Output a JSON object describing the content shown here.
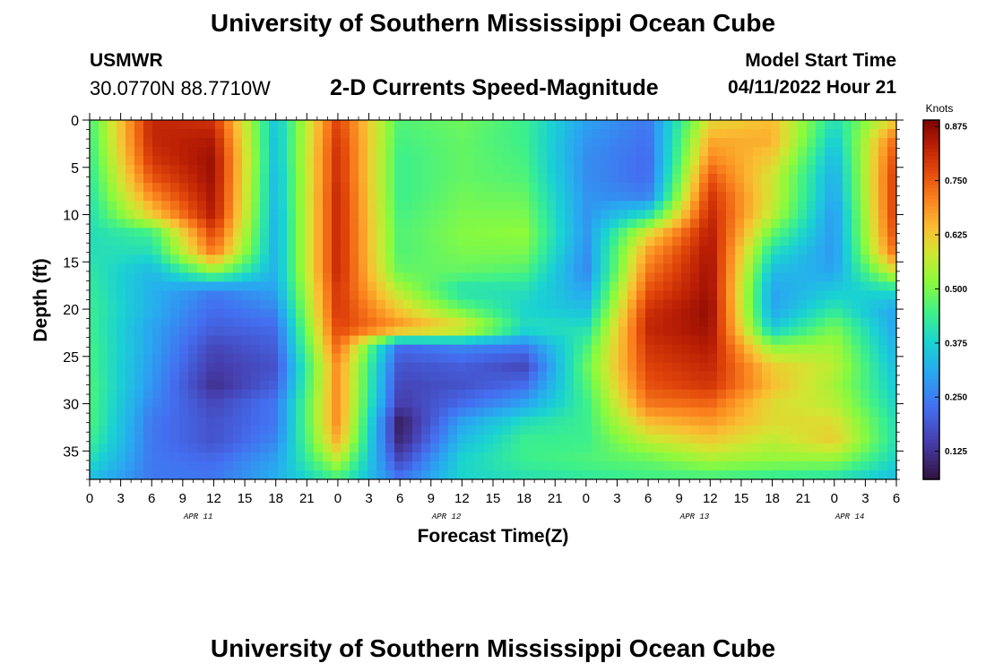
{
  "header": {
    "title": "University of Southern Mississippi Ocean Cube",
    "station_id": "USMWR",
    "station_coords": "30.0770N  88.7710W",
    "subtitle": "2-D Currents Speed-Magnitude",
    "model_start_label": "Model Start Time",
    "model_start_value": "04/11/2022 Hour 21"
  },
  "footer": {
    "title": "University of Southern Mississippi Ocean Cube"
  },
  "chart_data": {
    "type": "heatmap",
    "title": "2-D Currents Speed-Magnitude",
    "xlabel": "Forecast Time(Z)",
    "ylabel": "Depth (ft)",
    "x_tick_labels": [
      "0",
      "3",
      "6",
      "9",
      "12",
      "15",
      "18",
      "21",
      "0",
      "3",
      "6",
      "9",
      "12",
      "15",
      "18",
      "21",
      "0",
      "3",
      "6",
      "9",
      "12",
      "15",
      "18",
      "21",
      "0",
      "3",
      "6"
    ],
    "date_labels": [
      {
        "label": "APR 11",
        "at_tick": 3.5
      },
      {
        "label": "APR 12",
        "at_tick": 11.5
      },
      {
        "label": "APR 13",
        "at_tick": 19.5
      },
      {
        "label": "APR 14",
        "at_tick": 24.5
      }
    ],
    "x_range_hours": [
      0,
      78
    ],
    "y_ticks": [
      0,
      5,
      10,
      15,
      20,
      25,
      30,
      35
    ],
    "ylim": [
      0,
      38
    ],
    "y_inverted": true,
    "colorbar": {
      "unit": "Knots",
      "ticks": [
        "0.125",
        "0.250",
        "0.375",
        "0.500",
        "0.625",
        "0.750",
        "0.875"
      ],
      "range": [
        0.06,
        0.89
      ],
      "colormap": "turbo"
    },
    "depths": [
      0,
      2,
      4,
      6,
      8,
      10,
      12,
      14,
      16,
      18,
      20,
      22,
      24,
      26,
      28,
      30,
      32,
      34,
      36,
      38
    ],
    "hours": [
      0,
      6,
      12,
      18,
      24,
      30,
      36,
      42,
      48,
      54,
      60,
      66,
      72,
      78
    ],
    "values": [
      [
        0.45,
        0.82,
        0.8,
        0.35,
        0.78,
        0.46,
        0.49,
        0.44,
        0.3,
        0.24,
        0.6,
        0.64,
        0.4,
        0.62
      ],
      [
        0.44,
        0.82,
        0.84,
        0.34,
        0.8,
        0.45,
        0.48,
        0.44,
        0.28,
        0.23,
        0.66,
        0.66,
        0.36,
        0.74
      ],
      [
        0.43,
        0.8,
        0.86,
        0.34,
        0.81,
        0.44,
        0.48,
        0.45,
        0.27,
        0.22,
        0.7,
        0.62,
        0.33,
        0.78
      ],
      [
        0.42,
        0.76,
        0.86,
        0.33,
        0.81,
        0.44,
        0.48,
        0.46,
        0.27,
        0.22,
        0.76,
        0.58,
        0.31,
        0.8
      ],
      [
        0.41,
        0.7,
        0.85,
        0.33,
        0.82,
        0.44,
        0.49,
        0.48,
        0.28,
        0.25,
        0.8,
        0.58,
        0.3,
        0.8
      ],
      [
        0.4,
        0.62,
        0.84,
        0.32,
        0.82,
        0.45,
        0.5,
        0.5,
        0.28,
        0.4,
        0.82,
        0.56,
        0.28,
        0.8
      ],
      [
        0.4,
        0.44,
        0.78,
        0.32,
        0.82,
        0.46,
        0.51,
        0.52,
        0.28,
        0.6,
        0.84,
        0.48,
        0.28,
        0.78
      ],
      [
        0.4,
        0.4,
        0.72,
        0.32,
        0.82,
        0.46,
        0.5,
        0.5,
        0.27,
        0.68,
        0.85,
        0.4,
        0.28,
        0.74
      ],
      [
        0.42,
        0.33,
        0.52,
        0.32,
        0.82,
        0.48,
        0.48,
        0.46,
        0.26,
        0.72,
        0.86,
        0.34,
        0.3,
        0.6
      ],
      [
        0.43,
        0.32,
        0.25,
        0.3,
        0.8,
        0.55,
        0.4,
        0.4,
        0.3,
        0.76,
        0.86,
        0.3,
        0.36,
        0.4
      ],
      [
        0.44,
        0.32,
        0.22,
        0.26,
        0.8,
        0.62,
        0.48,
        0.38,
        0.34,
        0.8,
        0.87,
        0.3,
        0.42,
        0.3
      ],
      [
        0.44,
        0.3,
        0.2,
        0.22,
        0.78,
        0.7,
        0.62,
        0.4,
        0.4,
        0.82,
        0.86,
        0.36,
        0.5,
        0.3
      ],
      [
        0.45,
        0.3,
        0.16,
        0.2,
        0.74,
        0.22,
        0.26,
        0.24,
        0.45,
        0.8,
        0.84,
        0.52,
        0.54,
        0.32
      ],
      [
        0.45,
        0.29,
        0.14,
        0.18,
        0.7,
        0.18,
        0.2,
        0.16,
        0.48,
        0.78,
        0.82,
        0.62,
        0.56,
        0.34
      ],
      [
        0.46,
        0.28,
        0.12,
        0.2,
        0.7,
        0.16,
        0.18,
        0.22,
        0.46,
        0.76,
        0.8,
        0.64,
        0.54,
        0.36
      ],
      [
        0.46,
        0.26,
        0.16,
        0.24,
        0.7,
        0.14,
        0.22,
        0.3,
        0.44,
        0.72,
        0.74,
        0.6,
        0.56,
        0.38
      ],
      [
        0.46,
        0.24,
        0.18,
        0.24,
        0.7,
        0.08,
        0.3,
        0.4,
        0.44,
        0.64,
        0.68,
        0.6,
        0.6,
        0.4
      ],
      [
        0.44,
        0.24,
        0.18,
        0.26,
        0.66,
        0.1,
        0.34,
        0.44,
        0.44,
        0.56,
        0.62,
        0.56,
        0.62,
        0.4
      ],
      [
        0.4,
        0.24,
        0.22,
        0.3,
        0.56,
        0.16,
        0.38,
        0.44,
        0.46,
        0.48,
        0.54,
        0.52,
        0.52,
        0.38
      ],
      [
        0.34,
        0.24,
        0.24,
        0.32,
        0.44,
        0.24,
        0.38,
        0.4,
        0.42,
        0.44,
        0.44,
        0.42,
        0.4,
        0.34
      ]
    ]
  }
}
